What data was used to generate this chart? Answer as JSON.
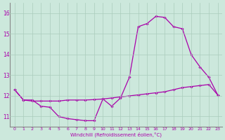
{
  "xlabel": "Windchill (Refroidissement éolien,°C)",
  "x_values": [
    0,
    1,
    2,
    3,
    4,
    5,
    6,
    7,
    8,
    9,
    10,
    11,
    12,
    13,
    14,
    15,
    16,
    17,
    18,
    19,
    20,
    21,
    22,
    23
  ],
  "line1_y": [
    12.3,
    11.8,
    11.8,
    11.5,
    11.45,
    11.0,
    10.9,
    10.85,
    10.8,
    10.8,
    11.85,
    11.5,
    11.9,
    12.9,
    15.35,
    15.5,
    15.85,
    15.8,
    15.35,
    15.25,
    14.0,
    13.4,
    12.9,
    12.05
  ],
  "line2_y": [
    12.3,
    11.8,
    11.75,
    11.75,
    11.75,
    11.75,
    11.8,
    11.8,
    11.8,
    11.82,
    11.85,
    11.9,
    11.95,
    12.0,
    12.05,
    12.1,
    12.15,
    12.2,
    12.3,
    12.4,
    12.45,
    12.5,
    12.55,
    12.05
  ],
  "line_color": "#aa00aa",
  "bg_color": "#cce8dc",
  "grid_color": "#aaccbc",
  "ylim": [
    10.5,
    16.5
  ],
  "xlim": [
    -0.5,
    23.5
  ],
  "yticks": [
    11,
    12,
    13,
    14,
    15,
    16
  ],
  "xticks": [
    0,
    1,
    2,
    3,
    4,
    5,
    6,
    7,
    8,
    9,
    10,
    11,
    12,
    13,
    14,
    15,
    16,
    17,
    18,
    19,
    20,
    21,
    22,
    23
  ]
}
